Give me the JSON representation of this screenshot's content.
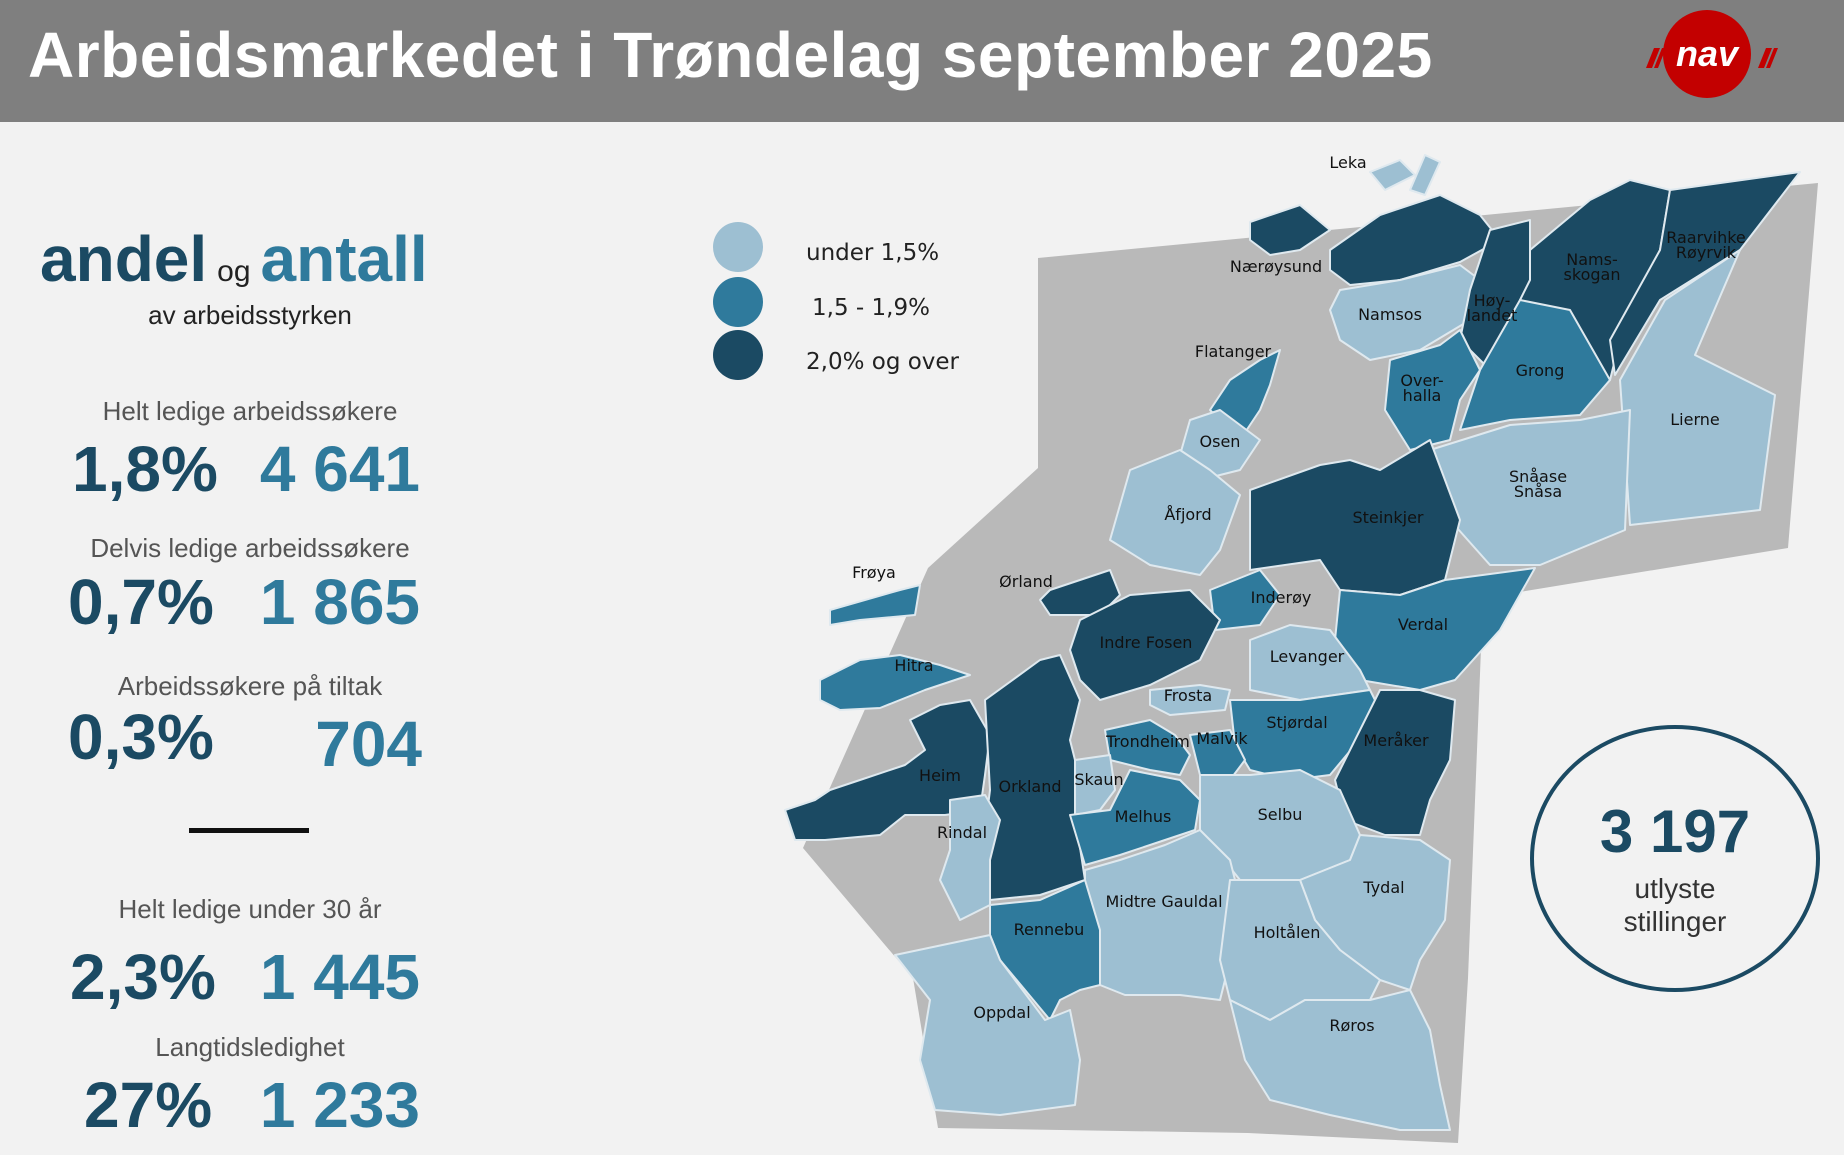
{
  "header": {
    "title": "Arbeidsmarkedet i Trøndelag september 2025",
    "logo_text": "nav"
  },
  "colors": {
    "light": "#9dbfd2",
    "medium": "#2f7a9c",
    "dark": "#1b4a63",
    "header_bg": "#7f7f7f",
    "logo_red": "#c30000"
  },
  "intro": {
    "andel": "andel",
    "og": "og",
    "antall": "antall",
    "subtitle": "av arbeidsstyrken"
  },
  "stats": {
    "helt_ledige": {
      "label": "Helt ledige arbeidssøkere",
      "pct": "1,8%",
      "count": "4 641"
    },
    "delvis_ledige": {
      "label": "Delvis ledige arbeidssøkere",
      "pct": "0,7%",
      "count": "1 865"
    },
    "tiltak": {
      "label": "Arbeidssøkere på tiltak",
      "pct": "0,3%",
      "count": "704"
    },
    "under_30": {
      "label": "Helt ledige under 30 år",
      "pct": "2,3%",
      "count": "1 445"
    },
    "langtid": {
      "label": "Langtidsledighet",
      "pct": "27%",
      "count": "1 233"
    }
  },
  "legend": [
    {
      "label": "under 1,5%",
      "level": "light"
    },
    {
      "label": "1,5 - 1,9%",
      "level": "medium"
    },
    {
      "label": "2,0% og over",
      "level": "dark"
    }
  ],
  "municipalities": [
    {
      "name": "Leka",
      "level": "light"
    },
    {
      "name": "Nærøysund",
      "level": "dark"
    },
    {
      "name": "Namsos",
      "level": "light"
    },
    {
      "name": "Nams-",
      "name2": "skogan",
      "level": "dark"
    },
    {
      "name": "Raarvihke",
      "name2": "Røyrvik",
      "level": "dark"
    },
    {
      "name": "Høy-",
      "name2": "landet",
      "level": "dark"
    },
    {
      "name": "Flatanger",
      "level": "medium"
    },
    {
      "name": "Over-",
      "name2": "halla",
      "level": "medium"
    },
    {
      "name": "Grong",
      "level": "medium"
    },
    {
      "name": "Lierne",
      "level": "light"
    },
    {
      "name": "Osen",
      "level": "light"
    },
    {
      "name": "Snåase",
      "name2": "Snåsa",
      "level": "light"
    },
    {
      "name": "Åfjord",
      "level": "light"
    },
    {
      "name": "Steinkjer",
      "level": "dark"
    },
    {
      "name": "Frøya",
      "level": "medium"
    },
    {
      "name": "Ørland",
      "level": "dark"
    },
    {
      "name": "Inderøy",
      "level": "medium"
    },
    {
      "name": "Indre Fosen",
      "level": "dark"
    },
    {
      "name": "Verdal",
      "level": "medium"
    },
    {
      "name": "Levanger",
      "level": "light"
    },
    {
      "name": "Hitra",
      "level": "medium"
    },
    {
      "name": "Frosta",
      "level": "light"
    },
    {
      "name": "Stjørdal",
      "level": "medium"
    },
    {
      "name": "Trondheim",
      "level": "medium"
    },
    {
      "name": "Malvik",
      "level": "medium"
    },
    {
      "name": "Meråker",
      "level": "dark"
    },
    {
      "name": "Heim",
      "level": "dark"
    },
    {
      "name": "Orkland",
      "level": "dark"
    },
    {
      "name": "Skaun",
      "level": "light"
    },
    {
      "name": "Melhus",
      "level": "medium"
    },
    {
      "name": "Selbu",
      "level": "light"
    },
    {
      "name": "Rindal",
      "level": "light"
    },
    {
      "name": "Midtre Gauldal",
      "level": "light"
    },
    {
      "name": "Tydal",
      "level": "light"
    },
    {
      "name": "Rennebu",
      "level": "medium"
    },
    {
      "name": "Holtålen",
      "level": "light"
    },
    {
      "name": "Oppdal",
      "level": "light"
    },
    {
      "name": "Røros",
      "level": "light"
    }
  ],
  "vacancies": {
    "count": "3 197",
    "line1": "utlyste",
    "line2": "stillinger"
  }
}
